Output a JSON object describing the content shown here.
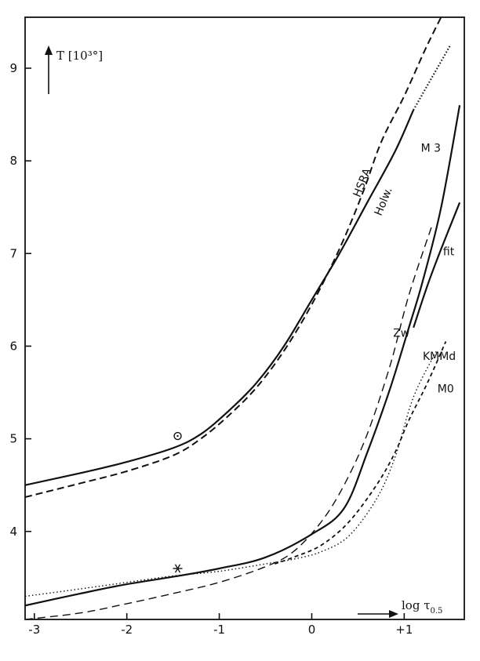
{
  "chart_data": {
    "type": "line",
    "title": "",
    "xlabel": "log τ",
    "xlabel_sub": "0.5",
    "ylabel": "T [10³°]",
    "xlim": [
      -3.1,
      1.65
    ],
    "ylim": [
      3.05,
      9.55
    ],
    "x_ticks": [
      {
        "value": -3,
        "label": "-3"
      },
      {
        "value": -2,
        "label": "-2"
      },
      {
        "value": -1,
        "label": "-1"
      },
      {
        "value": 0,
        "label": "0"
      },
      {
        "value": 1,
        "label": "+1"
      }
    ],
    "y_ticks": [
      {
        "value": 4,
        "label": "4"
      },
      {
        "value": 5,
        "label": "5"
      },
      {
        "value": 6,
        "label": "6"
      },
      {
        "value": 7,
        "label": "7"
      },
      {
        "value": 8,
        "label": "8"
      },
      {
        "value": 9,
        "label": "9"
      }
    ],
    "grid": false,
    "series": [
      {
        "name": "Holw.",
        "style": "solid",
        "points": [
          [
            -3.1,
            4.5
          ],
          [
            -2.5,
            4.63
          ],
          [
            -2,
            4.75
          ],
          [
            -1.5,
            4.9
          ],
          [
            -1.2,
            5.05
          ],
          [
            -0.9,
            5.3
          ],
          [
            -0.6,
            5.6
          ],
          [
            -0.3,
            6.0
          ],
          [
            0,
            6.5
          ],
          [
            0.3,
            7.0
          ],
          [
            0.6,
            7.55
          ],
          [
            0.9,
            8.1
          ],
          [
            1.1,
            8.55
          ]
        ],
        "extension": [
          [
            1.1,
            8.55
          ],
          [
            1.3,
            8.9
          ],
          [
            1.5,
            9.25
          ]
        ]
      },
      {
        "name": "HSRA",
        "style": "dashed",
        "points": [
          [
            -3.1,
            4.37
          ],
          [
            -2.5,
            4.52
          ],
          [
            -2,
            4.65
          ],
          [
            -1.5,
            4.82
          ],
          [
            -1.2,
            5.0
          ],
          [
            -0.9,
            5.25
          ],
          [
            -0.6,
            5.55
          ],
          [
            -0.3,
            5.95
          ],
          [
            0,
            6.45
          ],
          [
            0.3,
            7.05
          ],
          [
            0.55,
            7.65
          ],
          [
            0.75,
            8.2
          ],
          [
            1.0,
            8.7
          ],
          [
            1.25,
            9.25
          ],
          [
            1.5,
            9.75
          ]
        ]
      },
      {
        "name": "M 3",
        "style": "solid",
        "points": [
          [
            -3.1,
            3.2
          ],
          [
            -2.5,
            3.33
          ],
          [
            -2,
            3.43
          ],
          [
            -1.5,
            3.51
          ],
          [
            -1,
            3.6
          ],
          [
            -0.5,
            3.72
          ],
          [
            0,
            3.97
          ],
          [
            0.35,
            4.25
          ],
          [
            0.6,
            4.85
          ],
          [
            0.85,
            5.55
          ],
          [
            1.05,
            6.2
          ],
          [
            1.2,
            6.7
          ],
          [
            1.4,
            7.5
          ],
          [
            1.6,
            8.6
          ]
        ]
      },
      {
        "name": "fit",
        "style": "solid",
        "points": [
          [
            1.1,
            6.2
          ],
          [
            1.25,
            6.65
          ],
          [
            1.4,
            7.05
          ],
          [
            1.6,
            7.55
          ]
        ]
      },
      {
        "name": "Zw",
        "style": "dashed-long",
        "points": [
          [
            -3.1,
            3.05
          ],
          [
            -2.5,
            3.12
          ],
          [
            -2,
            3.22
          ],
          [
            -1.5,
            3.33
          ],
          [
            -1,
            3.45
          ],
          [
            -0.5,
            3.62
          ],
          [
            -0.2,
            3.78
          ],
          [
            0.1,
            4.1
          ],
          [
            0.35,
            4.5
          ],
          [
            0.6,
            5.05
          ],
          [
            0.85,
            5.8
          ],
          [
            1.05,
            6.55
          ],
          [
            1.3,
            7.3
          ]
        ]
      },
      {
        "name": "KMMd",
        "style": "dotted",
        "points": [
          [
            -3.1,
            3.3
          ],
          [
            -2.5,
            3.38
          ],
          [
            -2,
            3.45
          ],
          [
            -1.5,
            3.52
          ],
          [
            -1,
            3.57
          ],
          [
            -0.5,
            3.65
          ],
          [
            -0.2,
            3.7
          ],
          [
            0.1,
            3.78
          ],
          [
            0.4,
            3.95
          ],
          [
            0.7,
            4.35
          ],
          [
            0.9,
            4.8
          ],
          [
            1.1,
            5.45
          ],
          [
            1.35,
            5.95
          ]
        ]
      },
      {
        "name": "M0",
        "style": "dashed-short",
        "points": [
          [
            -0.4,
            3.65
          ],
          [
            -0.2,
            3.72
          ],
          [
            0.1,
            3.85
          ],
          [
            0.4,
            4.1
          ],
          [
            0.7,
            4.5
          ],
          [
            0.9,
            4.85
          ],
          [
            1.05,
            5.2
          ],
          [
            1.25,
            5.6
          ],
          [
            1.45,
            6.05
          ]
        ]
      }
    ],
    "annotations": [
      {
        "type": "symbol",
        "name": "sun-symbol",
        "x": -1.45,
        "y": 5.03
      },
      {
        "type": "symbol",
        "name": "star-symbol",
        "x": -1.45,
        "y": 3.6
      }
    ],
    "curve_labels": [
      {
        "text": "HSRA",
        "x": 0.52,
        "y": 7.6,
        "rotate": -68
      },
      {
        "text": "Holw.",
        "x": 0.75,
        "y": 7.4,
        "rotate": -68
      },
      {
        "text": "M 3",
        "x": 1.18,
        "y": 8.1,
        "rotate": 0
      },
      {
        "text": "fit",
        "x": 1.42,
        "y": 6.98,
        "rotate": 0
      },
      {
        "text": "Zw",
        "x": 0.88,
        "y": 6.1,
        "rotate": 0
      },
      {
        "text": "KMMd",
        "x": 1.2,
        "y": 5.85,
        "rotate": 0
      },
      {
        "text": "M0",
        "x": 1.36,
        "y": 5.5,
        "rotate": 0
      }
    ]
  }
}
